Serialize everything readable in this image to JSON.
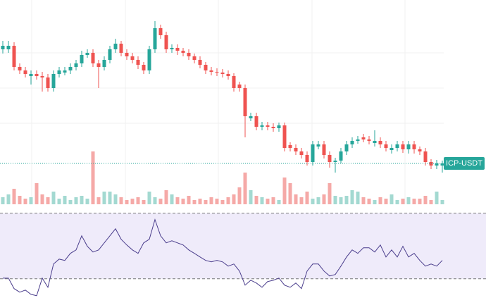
{
  "chart_data": {
    "type": "candlestick",
    "symbol": "ICP-USDT",
    "open": [
      6.2,
      6.2,
      6.25,
      5.95,
      5.9,
      5.82,
      5.85,
      5.82,
      5.8,
      5.65,
      5.85,
      5.87,
      5.9,
      5.95,
      6.0,
      6.12,
      6.15,
      6.0,
      5.95,
      6.05,
      6.2,
      6.28,
      6.15,
      6.1,
      6.05,
      5.98,
      5.9,
      6.2,
      6.5,
      6.4,
      6.2,
      6.22,
      6.18,
      6.15,
      6.1,
      6.05,
      5.98,
      5.9,
      5.88,
      5.87,
      5.85,
      5.82,
      5.7,
      5.65,
      5.22,
      5.25,
      5.1,
      5.12,
      5.1,
      5.08,
      5.12,
      4.84,
      4.8,
      4.75,
      4.7,
      4.6,
      4.82,
      4.85,
      4.7,
      4.6,
      4.62,
      4.75,
      4.85,
      4.9,
      4.95,
      4.92,
      4.87,
      4.9,
      4.85,
      4.77,
      4.8,
      4.85,
      4.78,
      4.85,
      4.78,
      4.75,
      4.6,
      4.55,
      4.55
    ],
    "high": [
      6.32,
      6.32,
      6.3,
      6.0,
      5.95,
      5.9,
      5.9,
      5.88,
      5.85,
      5.9,
      5.95,
      5.95,
      6.0,
      6.05,
      6.18,
      6.2,
      6.2,
      6.05,
      6.1,
      6.25,
      6.35,
      6.32,
      6.2,
      6.15,
      6.1,
      6.02,
      6.25,
      6.6,
      6.55,
      6.45,
      6.27,
      6.27,
      6.22,
      6.2,
      6.14,
      6.1,
      6.02,
      5.95,
      5.93,
      5.92,
      5.9,
      5.86,
      5.74,
      5.7,
      5.3,
      5.3,
      5.17,
      5.17,
      5.15,
      5.16,
      5.16,
      4.88,
      4.85,
      4.8,
      4.75,
      4.9,
      4.9,
      4.9,
      4.75,
      4.66,
      4.8,
      4.9,
      4.95,
      4.97,
      5.0,
      4.97,
      5.05,
      4.95,
      4.9,
      4.85,
      4.9,
      4.9,
      4.9,
      4.9,
      4.82,
      4.8,
      4.64,
      4.63,
      4.62
    ],
    "low": [
      6.14,
      6.15,
      5.9,
      5.85,
      5.8,
      5.7,
      5.77,
      5.6,
      5.6,
      5.6,
      5.8,
      5.83,
      5.85,
      5.9,
      5.95,
      6.08,
      5.95,
      5.65,
      5.9,
      6.0,
      6.15,
      6.1,
      6.05,
      6.0,
      5.92,
      5.85,
      5.85,
      6.15,
      6.35,
      6.15,
      6.15,
      6.12,
      6.1,
      6.05,
      6.0,
      5.93,
      5.85,
      5.83,
      5.82,
      5.8,
      5.77,
      5.6,
      5.6,
      4.95,
      5.18,
      5.05,
      5.05,
      5.05,
      5.03,
      5.03,
      4.75,
      4.75,
      4.7,
      4.65,
      4.55,
      4.55,
      4.78,
      4.65,
      4.52,
      4.45,
      4.58,
      4.7,
      4.8,
      4.86,
      4.88,
      4.85,
      4.82,
      4.8,
      4.75,
      4.72,
      4.75,
      4.73,
      4.72,
      4.72,
      4.7,
      4.55,
      4.5,
      4.5,
      4.45
    ],
    "close": [
      6.25,
      6.25,
      5.95,
      5.9,
      5.85,
      5.85,
      5.82,
      5.8,
      5.65,
      5.85,
      5.9,
      5.9,
      5.95,
      6.0,
      6.12,
      6.15,
      6.0,
      5.95,
      6.05,
      6.2,
      6.28,
      6.15,
      6.1,
      6.05,
      5.98,
      5.9,
      6.2,
      6.5,
      6.4,
      6.2,
      6.22,
      6.18,
      6.15,
      6.1,
      6.05,
      5.98,
      5.9,
      5.88,
      5.87,
      5.85,
      5.82,
      5.65,
      5.65,
      5.25,
      5.25,
      5.1,
      5.12,
      5.1,
      5.08,
      5.12,
      4.8,
      4.8,
      4.75,
      4.7,
      4.6,
      4.85,
      4.85,
      4.7,
      4.6,
      4.62,
      4.75,
      4.85,
      4.9,
      4.92,
      4.92,
      4.9,
      4.9,
      4.85,
      4.8,
      4.8,
      4.85,
      4.78,
      4.85,
      4.78,
      4.75,
      4.6,
      4.55,
      4.58,
      4.58
    ],
    "volume": [
      10,
      14,
      22,
      12,
      8,
      10,
      30,
      14,
      10,
      18,
      8,
      12,
      6,
      10,
      12,
      8,
      75,
      10,
      18,
      18,
      14,
      10,
      6,
      8,
      10,
      6,
      18,
      10,
      8,
      20,
      14,
      10,
      8,
      12,
      6,
      8,
      6,
      10,
      8,
      6,
      10,
      14,
      24,
      45,
      20,
      12,
      10,
      8,
      10,
      6,
      38,
      30,
      14,
      10,
      18,
      8,
      10,
      14,
      30,
      12,
      10,
      12,
      20,
      18,
      10,
      8,
      6,
      10,
      8,
      14,
      6,
      8,
      10,
      8,
      8,
      12,
      6,
      18,
      6
    ],
    "rsi": [
      30.4,
      30.4,
      24.0,
      21.8,
      23.1,
      20.5,
      19.7,
      30.4,
      24.8,
      39.0,
      42.0,
      41.2,
      45.5,
      47.6,
      56.2,
      49.8,
      46.3,
      47.6,
      51.9,
      56.2,
      60.5,
      54.1,
      50.6,
      47.6,
      45.5,
      51.9,
      54.1,
      66.1,
      56.2,
      51.9,
      53.2,
      51.9,
      50.6,
      47.6,
      45.5,
      43.3,
      41.2,
      40.3,
      41.2,
      40.3,
      37.7,
      39.0,
      34.7,
      26.1,
      29.1,
      27.4,
      24.8,
      28.3,
      29.1,
      30.4,
      26.1,
      24.8,
      27.4,
      24.0,
      34.7,
      39.0,
      39.0,
      34.7,
      31.7,
      32.6,
      37.7,
      43.3,
      47.6,
      45.5,
      48.9,
      48.9,
      46.3,
      50.6,
      43.3,
      47.6,
      43.3,
      49.8,
      43.3,
      45.5,
      41.2,
      37.7,
      39.0,
      37.7,
      41.2
    ],
    "ylim": [
      4.0,
      6.9
    ],
    "volume_lim": [
      0,
      80
    ],
    "rsi_ylim": [
      14,
      72
    ],
    "rsi_bands": [
      30,
      70
    ],
    "up_color": "#26a69a",
    "down_color": "#ef5350",
    "up_volume_color": "#a3d9d1",
    "down_volume_color": "#f5a9a7",
    "rsi_color": "#4a3d8c",
    "rsi_band_color": "#efebfa"
  }
}
